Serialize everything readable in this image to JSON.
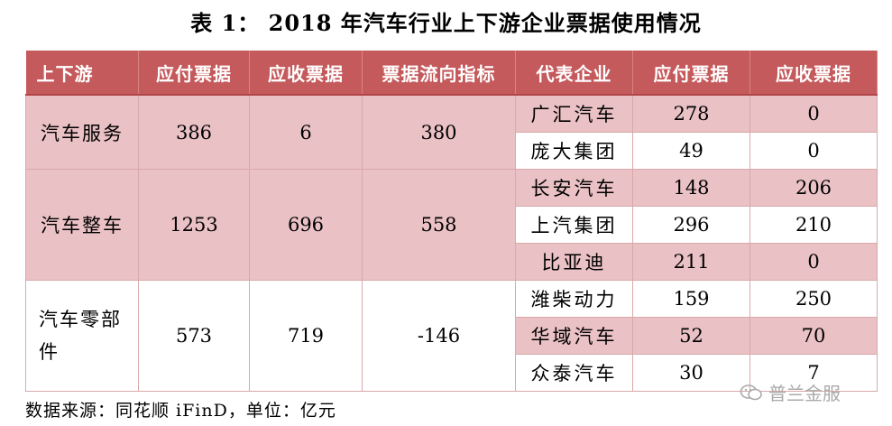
{
  "title": "表 1：  2018 年汽车行业上下游企业票据使用情况",
  "headers": [
    "上下游",
    "应付票据",
    "应收票据",
    "票据流向指标",
    "代表企业",
    "应付票据",
    "应收票据"
  ],
  "segments": [
    {
      "name": "汽车服务",
      "payable": "386",
      "receivable": "6",
      "flow": "380",
      "companies": [
        {
          "name": "广汇汽车",
          "payable": "278",
          "receivable": "0"
        },
        {
          "name": "庞大集团",
          "payable": "49",
          "receivable": "0"
        }
      ]
    },
    {
      "name": "汽车整车",
      "payable": "1253",
      "receivable": "696",
      "flow": "558",
      "companies": [
        {
          "name": "长安汽车",
          "payable": "148",
          "receivable": "206"
        },
        {
          "name": "上汽集团",
          "payable": "296",
          "receivable": "210"
        },
        {
          "name": "比亚迪",
          "payable": "211",
          "receivable": "0"
        }
      ]
    },
    {
      "name": "汽车零部件",
      "payable": "573",
      "receivable": "719",
      "flow": "-146",
      "companies": [
        {
          "name": "潍柴动力",
          "payable": "159",
          "receivable": "250"
        },
        {
          "name": "华域汽车",
          "payable": "52",
          "receivable": "70"
        },
        {
          "name": "众泰汽车",
          "payable": "30",
          "receivable": "7"
        }
      ]
    }
  ],
  "source": "数据来源：同花顺 iFinD，单位：亿元",
  "watermark": "普兰金服",
  "colors": {
    "header_bg": "#c55a5c",
    "row_pink": "#eac1c4",
    "row_white": "#ffffff"
  }
}
